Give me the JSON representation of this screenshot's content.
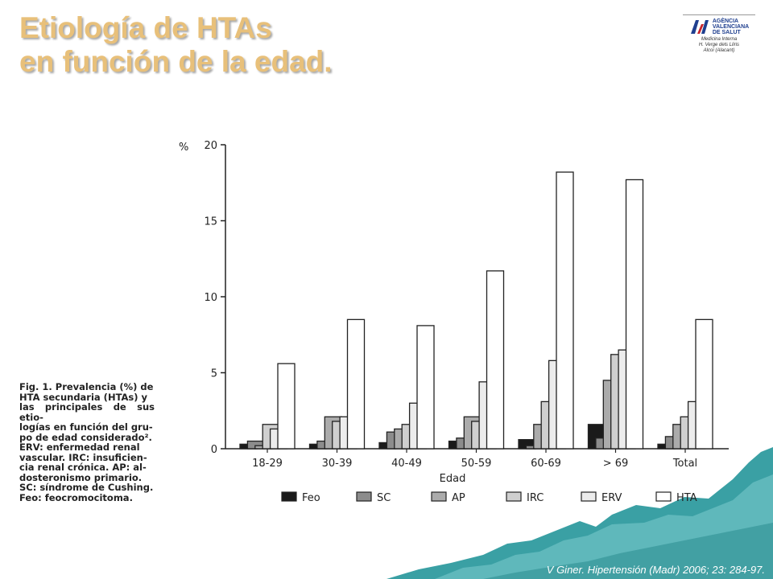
{
  "slide": {
    "title_line1": "Etiología de HTAs",
    "title_line2": "en función de la edad.",
    "title_color": "#e8c07a",
    "citation": "V Giner. Hipertensión (Madr) 2006; 23: 284-97."
  },
  "logo": {
    "agency_line1": "AGÈNCIA",
    "agency_line2": "VALENCIANA",
    "agency_line3": "DE SALUT",
    "subtitle_line1": "Medicina Interna",
    "subtitle_line2": "H. Verge dels Lliris",
    "subtitle_line3": "Alcoi (Alacant)"
  },
  "caption": {
    "lines": [
      "Fig. 1. Prevalencia (%) de",
      "HTA secundaria (HTAs) y",
      "las principales de sus etio-",
      "logías en función del gru-",
      "po de edad considerado².",
      "ERV: enfermedad renal",
      "vascular. IRC: insuficien-",
      "cia renal crónica. AP: al-",
      "dosteronismo primario.",
      "SC: síndrome de Cushing.",
      "Feo: feocromocitoma."
    ]
  },
  "chart_data": {
    "type": "bar",
    "y_unit_label": "%",
    "xlabel": "Edad",
    "ylim": [
      0,
      20
    ],
    "yticks": [
      "0",
      "5",
      "10",
      "15",
      "20"
    ],
    "categories": [
      "18-29",
      "30-39",
      "40-49",
      "50-59",
      "60-69",
      "> 69",
      "Total"
    ],
    "series": [
      {
        "name": "Feo",
        "color": "#1a1a1a",
        "values": [
          0.3,
          0.3,
          0.4,
          0.5,
          0.6,
          1.6,
          0.3
        ]
      },
      {
        "name": "SC",
        "color": "#8c8c8c",
        "values": [
          0.5,
          0.5,
          1.1,
          0.7,
          0.2,
          0.7,
          0.8
        ]
      },
      {
        "name": "AP",
        "color": "#ababab",
        "values": [
          0.2,
          2.1,
          1.3,
          2.1,
          1.6,
          4.5,
          1.6
        ]
      },
      {
        "name": "IRC",
        "color": "#cfcfcf",
        "values": [
          1.6,
          1.8,
          1.6,
          1.8,
          3.1,
          6.2,
          2.1
        ]
      },
      {
        "name": "ERV",
        "color": "#ececec",
        "values": [
          1.3,
          2.1,
          3.0,
          4.4,
          5.8,
          6.5,
          3.1
        ]
      },
      {
        "name": "HTA",
        "color": "#ffffff",
        "values": [
          5.6,
          8.5,
          8.1,
          11.7,
          18.2,
          17.7,
          8.5
        ]
      }
    ],
    "legend_position": "bottom",
    "grid": false
  }
}
